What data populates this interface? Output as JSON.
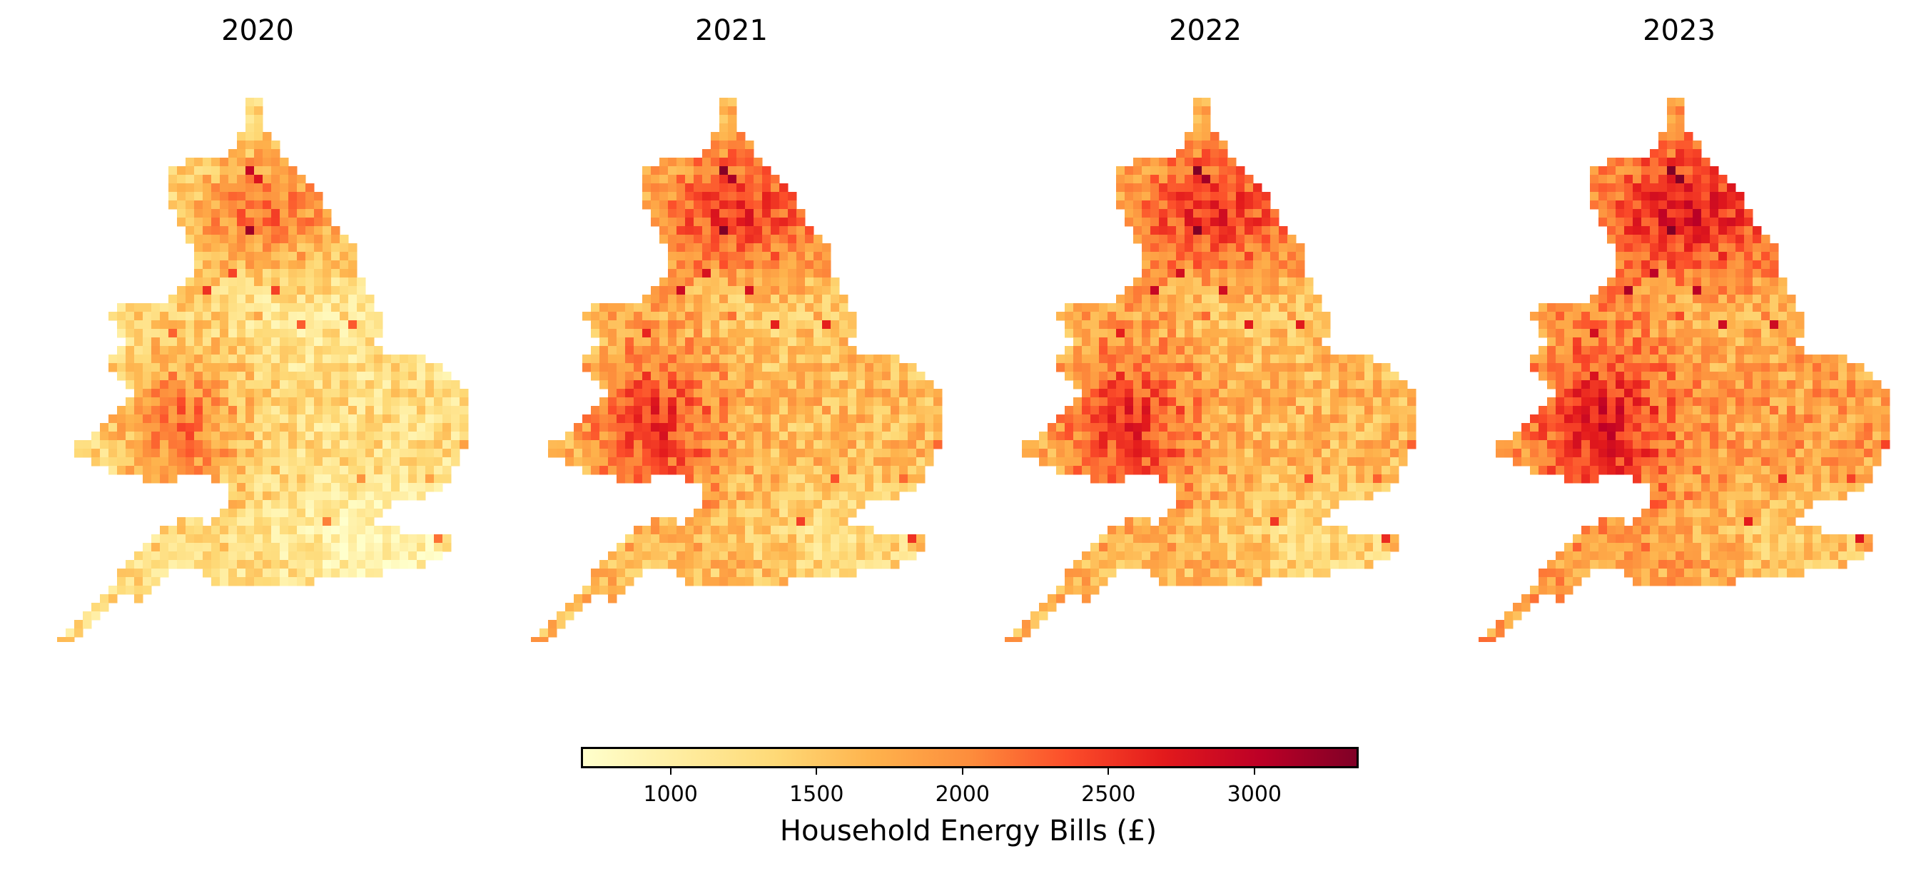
{
  "panels": [
    {
      "title": "2020",
      "intensity": 0.3
    },
    {
      "title": "2021",
      "intensity": 0.55
    },
    {
      "title": "2022",
      "intensity": 0.58
    },
    {
      "title": "2023",
      "intensity": 0.7
    }
  ],
  "colorbar": {
    "label": "Household Energy Bills (£)",
    "range": [
      700,
      3350
    ],
    "ticks": [
      1000,
      1500,
      2000,
      2500,
      3000
    ],
    "colormap": "YlOrRd",
    "colors": [
      "#ffffcc",
      "#ffeda0",
      "#fed976",
      "#feb24c",
      "#fd8d3c",
      "#fc4e2a",
      "#e31a1c",
      "#bd0026",
      "#800026"
    ]
  }
}
